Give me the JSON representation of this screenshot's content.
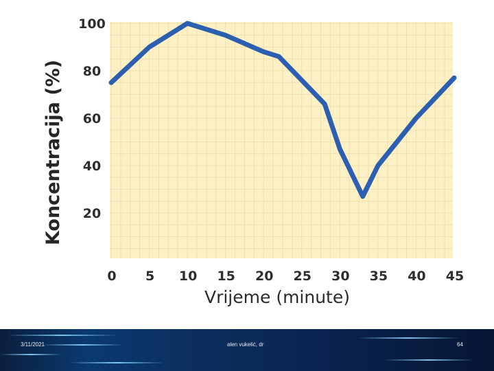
{
  "chart_data": {
    "type": "line",
    "xlabel": "Vrijeme (minute)",
    "ylabel": "Koncentracija (%)",
    "x": [
      0,
      5,
      10,
      15,
      20,
      22,
      25,
      28,
      30,
      33,
      35,
      40,
      45
    ],
    "xticks": [
      "0",
      "5",
      "10",
      "15",
      "20",
      "25",
      "30",
      "35",
      "40",
      "45"
    ],
    "yticks": [
      "100",
      "80",
      "60",
      "40",
      "20"
    ],
    "xlim": [
      0,
      45
    ],
    "ylim": [
      0,
      100
    ],
    "grid": true,
    "series": [
      {
        "values": [
          75,
          90,
          100,
          95,
          88,
          86,
          76,
          66,
          47,
          27,
          40,
          60,
          77
        ]
      }
    ],
    "colors": {
      "line": "#2d5fb0",
      "plot_background": "#fbf1c4",
      "grid": "#f1dfae"
    }
  },
  "footer": {
    "date": "3/11/2021",
    "author": "alen vukelić, dr",
    "page": "64"
  }
}
